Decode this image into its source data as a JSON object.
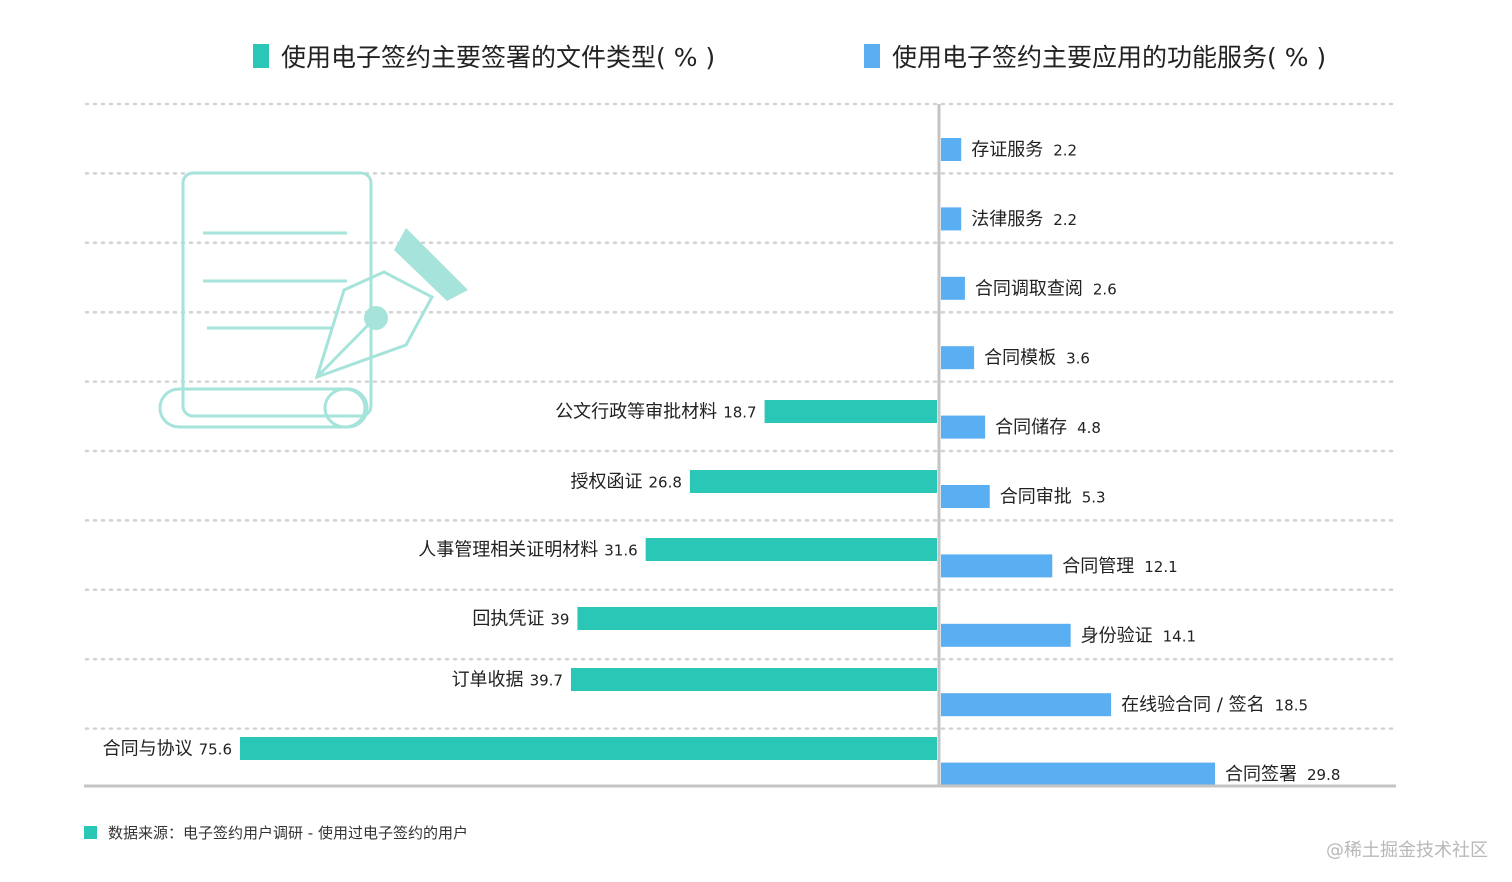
{
  "colors": {
    "left": "#2ac7b6",
    "right": "#5aaef2",
    "grid": "#d2d2d2",
    "axis": "#c4c4c4",
    "icon": "#a6e3db"
  },
  "icon": "document-with-pen-icon",
  "footer": {
    "text": "数据来源：电子签约用户调研 - 使用过电子签约的用户"
  },
  "watermark": "@稀土掘金技术社区",
  "chart_data": [
    {
      "type": "bar",
      "orientation": "horizontal",
      "direction": "leftward",
      "title": "使用电子签约主要签署的文件类型( % )",
      "categories": [
        "公文行政等审批材料",
        "授权函证",
        "人事管理相关证明材料",
        "回执凭证",
        "订单收据",
        "合同与协议"
      ],
      "values": [
        18.7,
        26.8,
        31.6,
        39,
        39.7,
        75.6
      ],
      "value_labels": [
        "18.7",
        "26.8",
        "31.6",
        "39",
        "39.7",
        "75.6"
      ],
      "xlim": [
        0,
        80
      ]
    },
    {
      "type": "bar",
      "orientation": "horizontal",
      "direction": "rightward",
      "title": "使用电子签约主要应用的功能服务( % )",
      "categories": [
        "存证服务",
        "法律服务",
        "合同调取查阅",
        "合同模板",
        "合同储存",
        "合同审批",
        "合同管理",
        "身份验证",
        "在线验合同 / 签名",
        "合同签署"
      ],
      "values": [
        2.2,
        2.2,
        2.6,
        3.6,
        4.8,
        5.3,
        12.1,
        14.1,
        18.5,
        29.8
      ],
      "value_labels": [
        "2.2",
        "2.2",
        "2.6",
        "3.6",
        "4.8",
        "5.3",
        "12.1",
        "14.1",
        "18.5",
        "29.8"
      ],
      "xlim": [
        0,
        50
      ]
    }
  ]
}
